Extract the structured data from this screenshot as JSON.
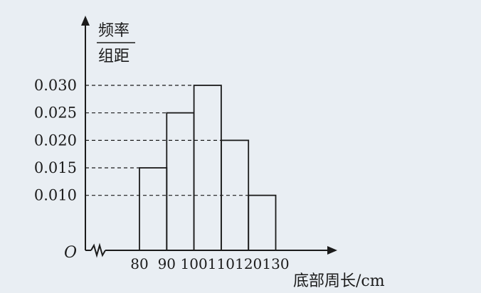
{
  "chart_data": {
    "type": "bar",
    "title": "",
    "y_axis_label_top": "频率",
    "y_axis_label_bottom": "组距",
    "xlabel": "底部周长/cm",
    "origin_label": "O",
    "x_tick_labels": [
      "80",
      "90",
      "100",
      "110",
      "120",
      "130"
    ],
    "y_tick_labels": [
      "0.030",
      "0.025",
      "0.020",
      "0.015",
      "0.010"
    ],
    "bins": [
      {
        "from": 80,
        "to": 90,
        "value": 0.015
      },
      {
        "from": 90,
        "to": 100,
        "value": 0.025
      },
      {
        "from": 100,
        "to": 110,
        "value": 0.03
      },
      {
        "from": 110,
        "to": 120,
        "value": 0.02
      },
      {
        "from": 120,
        "to": 130,
        "value": 0.01
      }
    ],
    "xlim": [
      80,
      130
    ],
    "ylim": [
      0,
      0.03
    ],
    "axis_break": true,
    "grid": false,
    "dashed_reference_lines": true
  }
}
